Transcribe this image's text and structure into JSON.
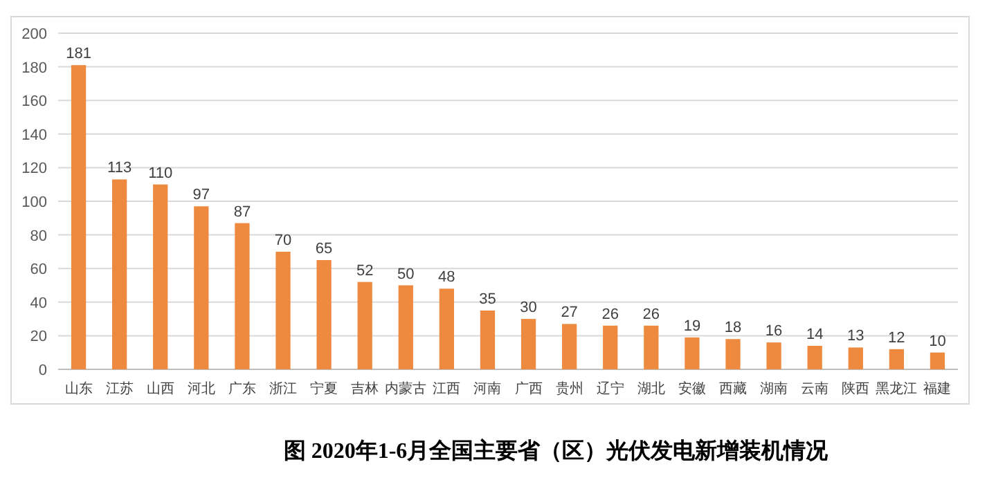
{
  "chart_data": {
    "type": "bar",
    "title": "图 2020年1-6月全国主要省（区）光伏发电新增装机情况",
    "categories": [
      "山东",
      "江苏",
      "山西",
      "河北",
      "广东",
      "浙江",
      "宁夏",
      "吉林",
      "内蒙古",
      "江西",
      "河南",
      "广西",
      "贵州",
      "辽宁",
      "湖北",
      "安徽",
      "西藏",
      "湖南",
      "云南",
      "陕西",
      "黑龙江",
      "福建"
    ],
    "values": [
      181,
      113,
      110,
      97,
      87,
      70,
      65,
      52,
      50,
      48,
      35,
      30,
      27,
      26,
      26,
      19,
      18,
      16,
      14,
      13,
      12,
      10
    ],
    "color": "#ed8a3f",
    "ylim": [
      0,
      200
    ],
    "yticks": [
      0,
      20,
      40,
      60,
      80,
      100,
      120,
      140,
      160,
      180,
      200
    ],
    "grid": "y",
    "data_labels": true
  }
}
